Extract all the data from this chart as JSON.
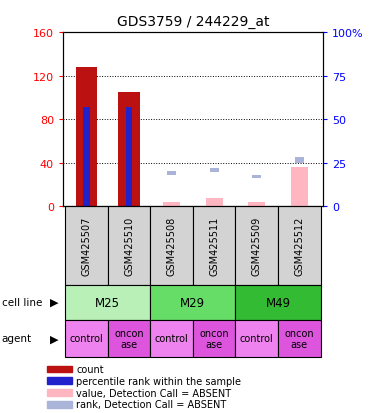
{
  "title": "GDS3759 / 244229_at",
  "samples": [
    "GSM425507",
    "GSM425510",
    "GSM425508",
    "GSM425511",
    "GSM425509",
    "GSM425512"
  ],
  "count_values": [
    128,
    105,
    null,
    null,
    null,
    null
  ],
  "rank_values": [
    57,
    57,
    null,
    null,
    null,
    null
  ],
  "absent_value_values": [
    null,
    null,
    4,
    7,
    4,
    36
  ],
  "absent_rank_values": [
    null,
    null,
    20,
    22,
    18,
    28
  ],
  "cell_line_groups": [
    {
      "label": "M25",
      "span": 2,
      "colors": "#90ee90"
    },
    {
      "label": "M29",
      "span": 2,
      "colors": "#5cd65c"
    },
    {
      "label": "M49",
      "span": 2,
      "colors": "#33bb33"
    }
  ],
  "agent_labels": [
    "control",
    "onconase",
    "control",
    "onconase",
    "control",
    "onconase"
  ],
  "agent_control_color": "#ee82ee",
  "agent_onconase_color": "#dd55dd",
  "ylim_left": [
    0,
    160
  ],
  "ylim_right": [
    0,
    100
  ],
  "yticks_left": [
    0,
    40,
    80,
    120,
    160
  ],
  "yticks_right": [
    0,
    25,
    50,
    75,
    100
  ],
  "ytick_labels_left": [
    "0",
    "40",
    "80",
    "120",
    "160"
  ],
  "ytick_labels_right": [
    "0",
    "25",
    "50",
    "75",
    "100%"
  ],
  "bar_color_count": "#bb1111",
  "bar_color_rank": "#2222cc",
  "bar_color_absent_value": "#ffb6c1",
  "bar_color_absent_rank": "#aab4d8",
  "sample_box_color": "#d3d3d3",
  "legend_items": [
    {
      "color": "#bb1111",
      "label": "count"
    },
    {
      "color": "#2222cc",
      "label": "percentile rank within the sample"
    },
    {
      "color": "#ffb6c1",
      "label": "value, Detection Call = ABSENT"
    },
    {
      "color": "#aab4d8",
      "label": "rank, Detection Call = ABSENT"
    }
  ]
}
